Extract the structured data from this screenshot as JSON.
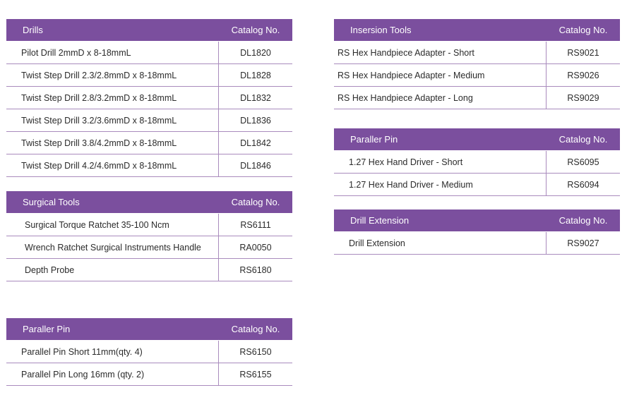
{
  "tables": {
    "drills": {
      "title": "Drills",
      "catalog_label": "Catalog No.",
      "rows": [
        {
          "name": "Pilot Drill 2mmD x 8-18mmL",
          "catalog": "DL1820"
        },
        {
          "name": "Twist Step Drill 2.3/2.8mmD x 8-18mmL",
          "catalog": "DL1828"
        },
        {
          "name": "Twist Step Drill 2.8/3.2mmD x 8-18mmL",
          "catalog": "DL1832"
        },
        {
          "name": "Twist Step Drill 3.2/3.6mmD x 8-18mmL",
          "catalog": "DL1836"
        },
        {
          "name": "Twist Step Drill 3.8/4.2mmD x 8-18mmL",
          "catalog": "DL1842"
        },
        {
          "name": "Twist Step Drill 4.2/4.6mmD x 8-18mmL",
          "catalog": "DL1846"
        }
      ]
    },
    "surgical": {
      "title": "Surgical Tools",
      "catalog_label": "Catalog No.",
      "rows": [
        {
          "name": "Surgical Torque Ratchet 35-100 Ncm",
          "catalog": "RS6111"
        },
        {
          "name": "Wrench Ratchet Surgical Instruments Handle",
          "catalog": "RA0050"
        },
        {
          "name": "Depth Probe",
          "catalog": "RS6180"
        }
      ]
    },
    "pin_left": {
      "title": "Paraller Pin",
      "catalog_label": "Catalog No.",
      "rows": [
        {
          "name": "Parallel Pin Short  11mm(qty. 4)",
          "catalog": "RS6150"
        },
        {
          "name": "Parallel Pin Long 16mm (qty. 2)",
          "catalog": "RS6155"
        }
      ]
    },
    "insertion": {
      "title": "Insersion Tools",
      "catalog_label": "Catalog No.",
      "rows": [
        {
          "name": "RS Hex Handpiece Adapter - Short",
          "catalog": "RS9021"
        },
        {
          "name": "RS Hex Handpiece Adapter - Medium",
          "catalog": "RS9026"
        },
        {
          "name": "RS Hex Handpiece Adapter - Long",
          "catalog": "RS9029"
        }
      ]
    },
    "pin_right": {
      "title": "Paraller Pin",
      "catalog_label": "Catalog No.",
      "rows": [
        {
          "name": "1.27 Hex Hand Driver - Short",
          "catalog": "RS6095"
        },
        {
          "name": "1.27 Hex Hand Driver -  Medium",
          "catalog": "RS6094"
        }
      ]
    },
    "extension": {
      "title": "Drill Extension",
      "catalog_label": "Catalog No.",
      "rows": [
        {
          "name": "Drill Extension",
          "catalog": "RS9027"
        }
      ]
    }
  }
}
